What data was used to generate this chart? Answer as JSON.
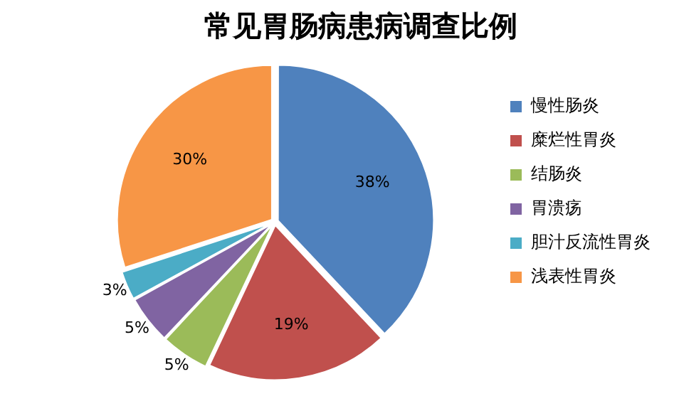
{
  "chart_data": {
    "type": "pie",
    "title": "常见胃肠病患病调查比例",
    "categories": [
      "慢性肠炎",
      "糜烂性胃炎",
      "结肠炎",
      "胃溃疡",
      "胆汁反流性胃炎",
      "浅表性胃炎"
    ],
    "values": [
      38,
      19,
      5,
      5,
      3,
      30
    ],
    "colors": [
      "#4f81bd",
      "#c0504d",
      "#9bbb59",
      "#8064a2",
      "#4bacc6",
      "#f79646"
    ],
    "value_labels": [
      "38%",
      "19%",
      "5%",
      "5%",
      "3%",
      "30%"
    ],
    "legend": "right"
  }
}
